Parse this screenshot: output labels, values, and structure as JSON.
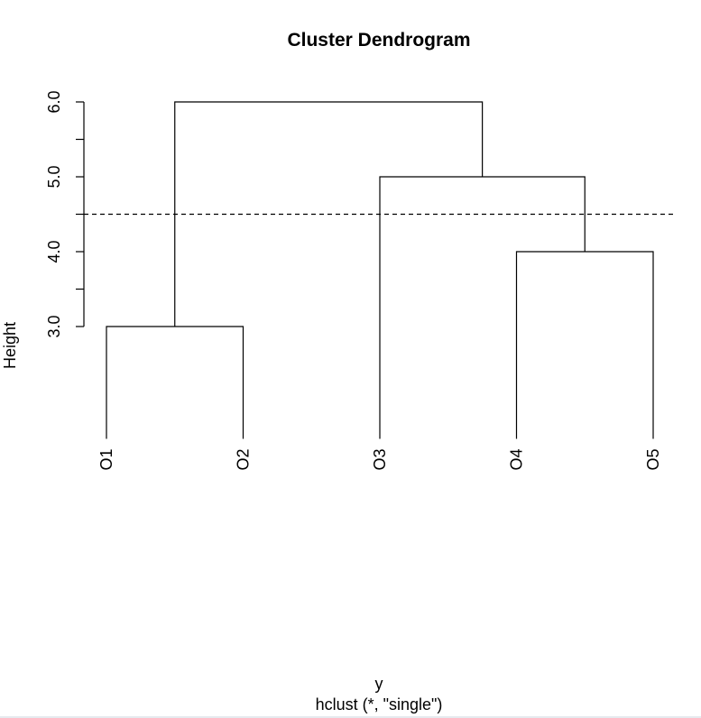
{
  "chart_data": {
    "type": "dendrogram",
    "title": "Cluster Dendrogram",
    "ylabel": "Height",
    "xlabel": "y",
    "sublabel": "hclust (*, \"single\")",
    "method": "single",
    "leaves": [
      "O1",
      "O2",
      "O3",
      "O4",
      "O5"
    ],
    "merges": [
      {
        "left": "O1",
        "right": "O2",
        "height": 3.0
      },
      {
        "left": "O4",
        "right": "O5",
        "height": 4.0
      },
      {
        "left": "O3",
        "right": "O4+O5",
        "height": 5.0
      },
      {
        "left": "O1+O2",
        "right": "O3+O4+O5",
        "height": 6.0
      }
    ],
    "leaf_height": 1.5,
    "yticks": [
      3.0,
      3.5,
      4.0,
      4.5,
      5.0,
      5.5,
      6.0
    ],
    "ytick_labels": [
      "3.0",
      "",
      "4.0",
      "",
      "5.0",
      "",
      "6.0"
    ],
    "ylim": [
      1.5,
      6.0
    ],
    "cut_height": 4.5,
    "grid": false
  }
}
